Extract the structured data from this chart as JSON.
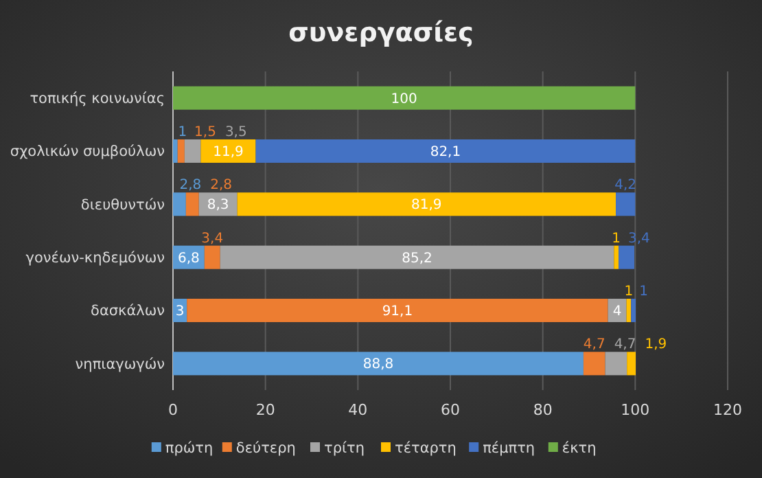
{
  "chart_data": {
    "type": "bar",
    "orientation": "horizontal",
    "stacked": true,
    "title": "συνεργασίες",
    "categories": [
      "τοπικής κοινωνίας",
      "σχολικών συμβούλων",
      "διευθυντών",
      "γονέων-κηδεμόνων",
      "δασκάλων",
      "νηπιαγωγών"
    ],
    "series": [
      {
        "name": "πρώτη",
        "color": "#5b9bd5",
        "values": [
          null,
          1,
          2.8,
          6.8,
          3,
          88.8
        ],
        "value_labels": [
          null,
          "1",
          "2,8",
          "6,8",
          "3",
          "88,8"
        ]
      },
      {
        "name": "δεύτερη",
        "color": "#ed7d31",
        "values": [
          null,
          1.5,
          2.8,
          3.4,
          91.1,
          4.7
        ],
        "value_labels": [
          null,
          "1,5",
          "2,8",
          "3,4",
          "91,1",
          "4,7"
        ]
      },
      {
        "name": "τρίτη",
        "color": "#a5a5a5",
        "values": [
          null,
          3.5,
          8.3,
          85.2,
          4,
          4.7
        ],
        "value_labels": [
          null,
          "3,5",
          "8,3",
          "85,2",
          "4",
          "4,7"
        ]
      },
      {
        "name": "τέταρτη",
        "color": "#ffc000",
        "values": [
          null,
          11.9,
          81.9,
          1,
          1,
          1.9
        ],
        "value_labels": [
          null,
          "11,9",
          "81,9",
          "1",
          "1",
          "1,9"
        ]
      },
      {
        "name": "πέμπτη",
        "color": "#4472c4",
        "values": [
          null,
          82.1,
          4.2,
          3.4,
          1,
          null
        ],
        "value_labels": [
          null,
          "82,1",
          "4,2",
          "3,4",
          "1",
          null
        ]
      },
      {
        "name": "έκτη",
        "color": "#70ad47",
        "values": [
          100,
          null,
          null,
          null,
          null,
          null
        ],
        "value_labels": [
          "100",
          null,
          null,
          null,
          null,
          null
        ]
      }
    ],
    "xlim": [
      0,
      120
    ],
    "xticks": [
      0,
      20,
      40,
      60,
      80,
      100,
      120
    ],
    "grid": "x",
    "legend": "bottom"
  }
}
